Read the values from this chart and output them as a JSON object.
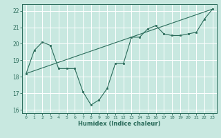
{
  "title": "",
  "xlabel": "Humidex (Indice chaleur)",
  "bg_color": "#c8e8e0",
  "grid_color": "#ffffff",
  "line_color": "#2a6b5a",
  "xlim": [
    -0.5,
    23.5
  ],
  "ylim": [
    15.8,
    22.4
  ],
  "xticks": [
    0,
    1,
    2,
    3,
    4,
    5,
    6,
    7,
    8,
    9,
    10,
    11,
    12,
    13,
    14,
    15,
    16,
    17,
    18,
    19,
    20,
    21,
    22,
    23
  ],
  "yticks": [
    16,
    17,
    18,
    19,
    20,
    21,
    22
  ],
  "line1_x": [
    0,
    1,
    2,
    3,
    4,
    5,
    6,
    7,
    8,
    9,
    10,
    11,
    12,
    13,
    14,
    15,
    16,
    17,
    18,
    19,
    20,
    21,
    22,
    23
  ],
  "line1_y": [
    18.2,
    19.6,
    20.1,
    19.9,
    18.5,
    18.5,
    18.5,
    17.1,
    16.3,
    16.6,
    17.3,
    18.8,
    18.8,
    20.4,
    20.4,
    20.9,
    21.1,
    20.6,
    20.5,
    20.5,
    20.6,
    20.7,
    21.5,
    22.1
  ],
  "line2_x": [
    0,
    23
  ],
  "line2_y": [
    18.2,
    22.1
  ]
}
